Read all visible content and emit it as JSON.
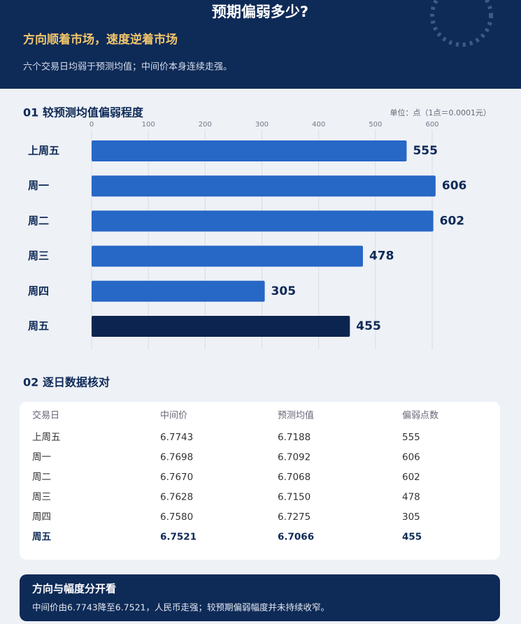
{
  "header": {
    "title": "预期偏弱多少?",
    "subtitle": "方向顺着市场，速度逆着市场",
    "description": "六个交易日均弱于预测均值；中间价本身连续走强。"
  },
  "chart_data": {
    "type": "bar",
    "orientation": "horizontal",
    "title": "01  较预测均值偏弱程度",
    "unit_note": "单位：点（1点＝0.0001元）",
    "categories": [
      "上周五",
      "周一",
      "周二",
      "周三",
      "周四",
      "周五"
    ],
    "values": [
      555,
      606,
      602,
      478,
      305,
      455
    ],
    "colors": [
      "#2767c6",
      "#2767c6",
      "#2767c6",
      "#2767c6",
      "#2767c6",
      "#0c2550"
    ],
    "xlim": [
      0,
      600
    ],
    "xticks": [
      0,
      100,
      200,
      300,
      400,
      500,
      600
    ],
    "grid": true
  },
  "table": {
    "title": "02  逐日数据核对",
    "columns": [
      "交易日",
      "中间价",
      "预测均值",
      "偏弱点数"
    ],
    "rows": [
      [
        "上周五",
        "6.7743",
        "6.7188",
        "555"
      ],
      [
        "周一",
        "6.7698",
        "6.7092",
        "606"
      ],
      [
        "周二",
        "6.7670",
        "6.7068",
        "602"
      ],
      [
        "周三",
        "6.7628",
        "6.7150",
        "478"
      ],
      [
        "周四",
        "6.7580",
        "6.7275",
        "305"
      ],
      [
        "周五",
        "6.7521",
        "6.7066",
        "455"
      ]
    ]
  },
  "footer": {
    "title": "方向与幅度分开看",
    "text": "中间价由6.7743降至6.7521，人民币走强；较预期偏弱幅度并未持续收窄。"
  }
}
